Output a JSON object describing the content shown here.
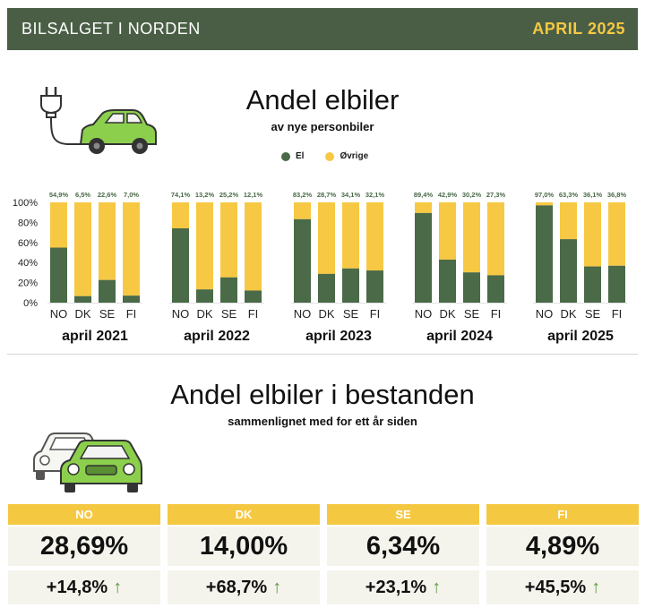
{
  "header": {
    "brand": "BILSALGET I NORDEN",
    "date": "APRIL 2025"
  },
  "section1": {
    "title": "Andel elbiler",
    "subtitle": "av nye personbiler"
  },
  "legend": [
    {
      "label": "El",
      "color": "#4a6a48"
    },
    {
      "label": "Øvrige",
      "color": "#f7c843"
    }
  ],
  "chart_data": {
    "type": "bar",
    "stacked": true,
    "ylim": [
      0,
      100
    ],
    "yticks": [
      "0%",
      "20%",
      "40%",
      "60%",
      "80%",
      "100%"
    ],
    "colors": {
      "el": "#4a6a48",
      "ovrige": "#f7c843"
    },
    "groups": [
      {
        "label": "april 2021",
        "countries": [
          "NO",
          "DK",
          "SE",
          "FI"
        ],
        "el": [
          54.9,
          6.5,
          22.6,
          7.0
        ],
        "labels": [
          "54,9%",
          "6,5%",
          "22,6%",
          "7,0%"
        ]
      },
      {
        "label": "april 2022",
        "countries": [
          "NO",
          "DK",
          "SE",
          "FI"
        ],
        "el": [
          74.1,
          13.2,
          25.2,
          12.1
        ],
        "labels": [
          "74,1%",
          "13,2%",
          "25,2%",
          "12,1%"
        ]
      },
      {
        "label": "april 2023",
        "countries": [
          "NO",
          "DK",
          "SE",
          "FI"
        ],
        "el": [
          83.2,
          28.7,
          34.1,
          32.1
        ],
        "labels": [
          "83,2%",
          "28,7%",
          "34,1%",
          "32,1%"
        ]
      },
      {
        "label": "april 2024",
        "countries": [
          "NO",
          "DK",
          "SE",
          "FI"
        ],
        "el": [
          89.4,
          42.9,
          30.2,
          27.3
        ],
        "labels": [
          "89,4%",
          "42,9%",
          "30,2%",
          "27,3%"
        ]
      },
      {
        "label": "april 2025",
        "countries": [
          "NO",
          "DK",
          "SE",
          "FI"
        ],
        "el": [
          97.0,
          63.3,
          36.1,
          36.8
        ],
        "labels": [
          "97,0%",
          "63,3%",
          "36,1%",
          "36,8%"
        ]
      }
    ]
  },
  "section2": {
    "title": "Andel elbiler i bestanden",
    "subtitle": "sammenlignet med for ett år siden"
  },
  "stock": [
    {
      "country": "NO",
      "share": "28,69%",
      "change": "+14,8%"
    },
    {
      "country": "DK",
      "share": "14,00%",
      "change": "+68,7%"
    },
    {
      "country": "SE",
      "share": "6,34%",
      "change": "+23,1%"
    },
    {
      "country": "FI",
      "share": "4,89%",
      "change": "+45,5%"
    }
  ],
  "icons": {
    "illustration1": "electric-car-plug-icon",
    "illustration2": "cars-front-icon",
    "up_arrow": "arrow-up-icon"
  }
}
